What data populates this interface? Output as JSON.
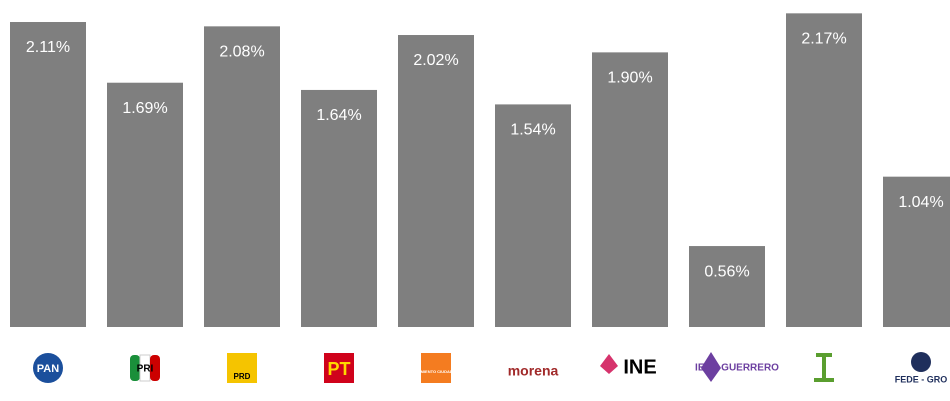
{
  "chart_data": {
    "type": "bar",
    "categories": [
      "PAN",
      "PRI",
      "PRD",
      "PT",
      "MOVIMIENTO CIUDADANO",
      "morena",
      "INE",
      "IEPC GUERRERO",
      null,
      "FEDE - GRO"
    ],
    "values": [
      2.11,
      1.69,
      2.08,
      1.64,
      2.02,
      1.54,
      1.9,
      0.56,
      2.17,
      1.04
    ],
    "value_labels": [
      "2.11%",
      "1.69%",
      "2.08%",
      "1.64%",
      "2.02%",
      "1.54%",
      "1.90%",
      "0.56%",
      "2.17%",
      "1.04%"
    ],
    "color": "#7f7f7f",
    "ylim": [
      0,
      2.2
    ]
  }
}
